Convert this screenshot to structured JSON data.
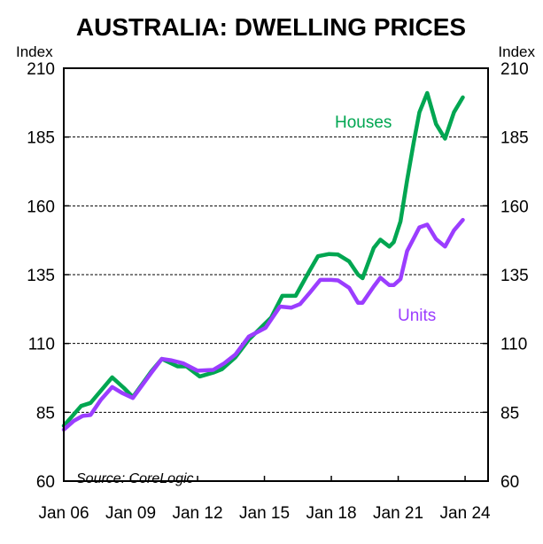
{
  "chart_data": {
    "type": "line",
    "title": "AUSTRALIA: DWELLING PRICES",
    "ylabel_left": "Index",
    "ylabel_right": "Index",
    "ylim": [
      60,
      210
    ],
    "yticks": [
      60,
      85,
      110,
      135,
      160,
      185,
      210
    ],
    "xlim": [
      2006,
      2024.9
    ],
    "xticks": [
      {
        "x": 2006,
        "label": "Jan 06"
      },
      {
        "x": 2009,
        "label": "Jan 09"
      },
      {
        "x": 2012,
        "label": "Jan 12"
      },
      {
        "x": 2015,
        "label": "Jan 15"
      },
      {
        "x": 2018,
        "label": "Jan 18"
      },
      {
        "x": 2021,
        "label": "Jan 21"
      },
      {
        "x": 2024,
        "label": "Jan 24"
      }
    ],
    "grid": "horizontal dashed",
    "annotation": "Source: CoreLogic",
    "series": [
      {
        "name": "Houses",
        "color": "#00a651",
        "x": [
          2006.0,
          2006.78,
          2007.2,
          2008.17,
          2008.7,
          2009.1,
          2009.9,
          2010.4,
          2011.1,
          2011.5,
          2012.1,
          2012.7,
          2013.1,
          2013.7,
          2014.3,
          2014.9,
          2015.3,
          2015.8,
          2016.4,
          2017.0,
          2017.4,
          2017.9,
          2018.3,
          2018.8,
          2019.2,
          2019.4,
          2019.9,
          2020.2,
          2020.6,
          2020.8,
          2021.1,
          2021.4,
          2021.7,
          2021.95,
          2022.3,
          2022.7,
          2023.1,
          2023.5,
          2023.9
        ],
        "y": [
          80.1,
          87.3,
          88.4,
          97.7,
          93.8,
          90.5,
          99.6,
          104.4,
          101.7,
          101.7,
          98.0,
          99.4,
          100.7,
          105.0,
          111.4,
          116.2,
          119.4,
          127.3,
          127.3,
          136.1,
          141.7,
          142.5,
          142.3,
          139.8,
          135.0,
          133.7,
          144.7,
          147.7,
          145.2,
          146.8,
          154.3,
          169.3,
          183.3,
          194.0,
          201.0,
          189.7,
          184.4,
          194.0,
          199.4
        ]
      },
      {
        "name": "Units",
        "color": "#9b3dff",
        "x": [
          2006.0,
          2006.45,
          2006.85,
          2007.2,
          2007.65,
          2008.17,
          2008.6,
          2009.1,
          2009.9,
          2010.4,
          2010.8,
          2011.35,
          2012.0,
          2012.7,
          2013.2,
          2013.7,
          2014.3,
          2015.05,
          2015.7,
          2016.2,
          2016.6,
          2017.05,
          2017.5,
          2018.0,
          2018.3,
          2018.8,
          2019.2,
          2019.4,
          2019.9,
          2020.2,
          2020.6,
          2020.8,
          2021.1,
          2021.4,
          2021.95,
          2022.3,
          2022.7,
          2023.1,
          2023.5,
          2023.9
        ],
        "y": [
          78.7,
          81.9,
          83.7,
          84.0,
          89.4,
          94.2,
          92.1,
          90.2,
          99.1,
          104.4,
          103.9,
          102.8,
          100.1,
          100.4,
          102.8,
          106.0,
          112.5,
          115.7,
          123.4,
          123.0,
          124.3,
          128.6,
          133.1,
          133.1,
          132.9,
          130.2,
          124.8,
          124.8,
          130.7,
          133.9,
          131.2,
          131.2,
          133.4,
          143.6,
          152.2,
          153.2,
          147.9,
          145.2,
          151.1,
          154.9
        ]
      }
    ]
  }
}
